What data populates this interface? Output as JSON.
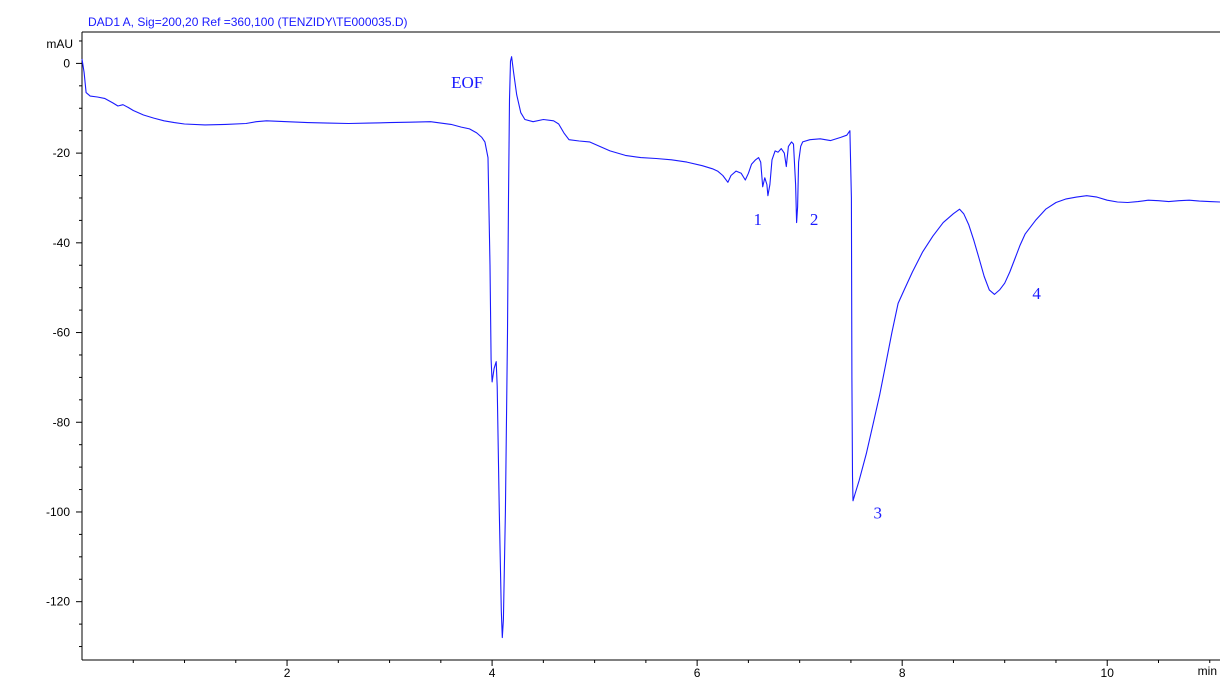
{
  "chart_data": {
    "type": "line",
    "title": "DAD1 A, Sig=200,20 Ref =360,100 (TENZIDY\\TE000035.D)",
    "ylabel": "mAU",
    "xlabel": "min",
    "xlim": [
      0,
      11.1
    ],
    "ylim": [
      -133,
      7
    ],
    "x_ticks": [
      2,
      4,
      6,
      8,
      10
    ],
    "x_tick_labels": [
      "2",
      "4",
      "6",
      "8",
      "10"
    ],
    "y_ticks": [
      0,
      -20,
      -40,
      -60,
      -80,
      -100,
      -120
    ],
    "y_tick_labels": [
      "0",
      "-20",
      "-40",
      "-60",
      "-80",
      "-100",
      "-120"
    ],
    "grid": false,
    "line_color": "#1a1aff",
    "series": [
      {
        "points": [
          [
            0.0,
            1.0
          ],
          [
            0.02,
            -2.0
          ],
          [
            0.04,
            -6.5
          ],
          [
            0.08,
            -7.3
          ],
          [
            0.15,
            -7.5
          ],
          [
            0.22,
            -7.8
          ],
          [
            0.3,
            -8.8
          ],
          [
            0.35,
            -9.5
          ],
          [
            0.4,
            -9.2
          ],
          [
            0.45,
            -9.8
          ],
          [
            0.5,
            -10.5
          ],
          [
            0.6,
            -11.5
          ],
          [
            0.7,
            -12.2
          ],
          [
            0.8,
            -12.8
          ],
          [
            0.9,
            -13.2
          ],
          [
            1.0,
            -13.5
          ],
          [
            1.2,
            -13.7
          ],
          [
            1.4,
            -13.6
          ],
          [
            1.6,
            -13.4
          ],
          [
            1.7,
            -13.0
          ],
          [
            1.8,
            -12.8
          ],
          [
            2.0,
            -13.0
          ],
          [
            2.2,
            -13.2
          ],
          [
            2.4,
            -13.3
          ],
          [
            2.6,
            -13.4
          ],
          [
            2.8,
            -13.3
          ],
          [
            3.0,
            -13.2
          ],
          [
            3.2,
            -13.1
          ],
          [
            3.4,
            -13.0
          ],
          [
            3.5,
            -13.3
          ],
          [
            3.6,
            -13.6
          ],
          [
            3.7,
            -14.2
          ],
          [
            3.78,
            -14.6
          ],
          [
            3.85,
            -15.5
          ],
          [
            3.9,
            -16.5
          ],
          [
            3.93,
            -17.5
          ],
          [
            3.96,
            -21.0
          ],
          [
            3.98,
            -45.0
          ],
          [
            3.99,
            -66.0
          ],
          [
            4.0,
            -71.0
          ],
          [
            4.02,
            -68.0
          ],
          [
            4.04,
            -66.5
          ],
          [
            4.05,
            -72.0
          ],
          [
            4.07,
            -100.0
          ],
          [
            4.09,
            -122.0
          ],
          [
            4.1,
            -128.0
          ],
          [
            4.11,
            -124.0
          ],
          [
            4.13,
            -100.0
          ],
          [
            4.15,
            -60.0
          ],
          [
            4.16,
            -30.0
          ],
          [
            4.17,
            -8.0
          ],
          [
            4.18,
            0.5
          ],
          [
            4.19,
            1.5
          ],
          [
            4.21,
            -2.0
          ],
          [
            4.24,
            -7.0
          ],
          [
            4.28,
            -11.0
          ],
          [
            4.32,
            -12.5
          ],
          [
            4.4,
            -13.0
          ],
          [
            4.5,
            -12.5
          ],
          [
            4.6,
            -12.8
          ],
          [
            4.65,
            -13.5
          ],
          [
            4.7,
            -15.5
          ],
          [
            4.75,
            -17.0
          ],
          [
            4.85,
            -17.3
          ],
          [
            4.95,
            -17.5
          ],
          [
            5.05,
            -18.5
          ],
          [
            5.15,
            -19.5
          ],
          [
            5.3,
            -20.5
          ],
          [
            5.45,
            -21.0
          ],
          [
            5.6,
            -21.2
          ],
          [
            5.75,
            -21.5
          ],
          [
            5.9,
            -22.0
          ],
          [
            6.05,
            -22.8
          ],
          [
            6.15,
            -23.5
          ],
          [
            6.2,
            -24.0
          ],
          [
            6.25,
            -25.0
          ],
          [
            6.3,
            -26.5
          ],
          [
            6.33,
            -25.0
          ],
          [
            6.38,
            -24.0
          ],
          [
            6.43,
            -24.5
          ],
          [
            6.47,
            -26.0
          ],
          [
            6.5,
            -24.5
          ],
          [
            6.53,
            -22.5
          ],
          [
            6.57,
            -21.5
          ],
          [
            6.6,
            -21.0
          ],
          [
            6.62,
            -22.0
          ],
          [
            6.64,
            -27.5
          ],
          [
            6.66,
            -25.5
          ],
          [
            6.68,
            -27.0
          ],
          [
            6.69,
            -29.5
          ],
          [
            6.71,
            -27.0
          ],
          [
            6.73,
            -21.5
          ],
          [
            6.76,
            -19.5
          ],
          [
            6.79,
            -19.8
          ],
          [
            6.82,
            -19.0
          ],
          [
            6.85,
            -20.0
          ],
          [
            6.87,
            -23.0
          ],
          [
            6.89,
            -18.5
          ],
          [
            6.92,
            -17.5
          ],
          [
            6.94,
            -18.0
          ],
          [
            6.96,
            -27.0
          ],
          [
            6.97,
            -35.5
          ],
          [
            6.98,
            -32.0
          ],
          [
            6.99,
            -22.0
          ],
          [
            7.01,
            -18.5
          ],
          [
            7.03,
            -17.5
          ],
          [
            7.1,
            -17.0
          ],
          [
            7.2,
            -16.8
          ],
          [
            7.3,
            -17.2
          ],
          [
            7.4,
            -16.5
          ],
          [
            7.46,
            -16.0
          ],
          [
            7.49,
            -15.0
          ],
          [
            7.505,
            -30.0
          ],
          [
            7.51,
            -70.0
          ],
          [
            7.515,
            -92.0
          ],
          [
            7.52,
            -97.5
          ],
          [
            7.54,
            -96.0
          ],
          [
            7.58,
            -93.0
          ],
          [
            7.65,
            -87.0
          ],
          [
            7.72,
            -80.0
          ],
          [
            7.78,
            -74.0
          ],
          [
            7.84,
            -67.0
          ],
          [
            7.9,
            -60.0
          ],
          [
            7.96,
            -53.5
          ],
          [
            8.02,
            -50.5
          ],
          [
            8.1,
            -46.5
          ],
          [
            8.2,
            -42.0
          ],
          [
            8.3,
            -38.5
          ],
          [
            8.4,
            -35.5
          ],
          [
            8.5,
            -33.5
          ],
          [
            8.56,
            -32.5
          ],
          [
            8.6,
            -33.5
          ],
          [
            8.65,
            -36.0
          ],
          [
            8.7,
            -39.5
          ],
          [
            8.75,
            -43.5
          ],
          [
            8.8,
            -47.5
          ],
          [
            8.85,
            -50.5
          ],
          [
            8.9,
            -51.5
          ],
          [
            8.95,
            -50.5
          ],
          [
            9.0,
            -49.0
          ],
          [
            9.05,
            -46.5
          ],
          [
            9.1,
            -43.5
          ],
          [
            9.15,
            -40.5
          ],
          [
            9.2,
            -38.0
          ],
          [
            9.3,
            -35.0
          ],
          [
            9.4,
            -32.5
          ],
          [
            9.5,
            -31.0
          ],
          [
            9.6,
            -30.2
          ],
          [
            9.7,
            -29.8
          ],
          [
            9.8,
            -29.5
          ],
          [
            9.9,
            -29.8
          ],
          [
            10.0,
            -30.5
          ],
          [
            10.1,
            -30.9
          ],
          [
            10.2,
            -31.0
          ],
          [
            10.3,
            -30.8
          ],
          [
            10.4,
            -30.5
          ],
          [
            10.5,
            -30.6
          ],
          [
            10.6,
            -30.8
          ],
          [
            10.7,
            -30.6
          ],
          [
            10.8,
            -30.5
          ],
          [
            10.9,
            -30.7
          ],
          [
            11.0,
            -30.8
          ],
          [
            11.1,
            -30.9
          ]
        ]
      }
    ],
    "annotations": [
      {
        "text": "EOF",
        "x": 3.6,
        "y": -5.5
      },
      {
        "text": "1",
        "x": 6.55,
        "y": -36.0
      },
      {
        "text": "2",
        "x": 7.1,
        "y": -36.0
      },
      {
        "text": "3",
        "x": 7.72,
        "y": -101.5
      },
      {
        "text": "4",
        "x": 9.27,
        "y": -52.5
      }
    ]
  }
}
